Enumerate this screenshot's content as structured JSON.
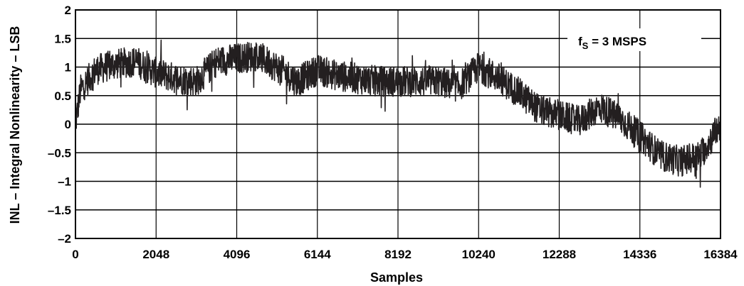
{
  "chart_data": {
    "type": "line",
    "title": "",
    "xlabel": "Samples",
    "ylabel": "INL – Integral Nonlinearity – LSB",
    "xlim": [
      0,
      16384
    ],
    "ylim": [
      -2,
      2
    ],
    "x_ticks": [
      0,
      2048,
      4096,
      6144,
      8192,
      10240,
      12288,
      14336,
      16384
    ],
    "x_tick_labels": [
      "0",
      "2048",
      "4096",
      "6144",
      "8192",
      "10240",
      "12288",
      "14336",
      "16384"
    ],
    "y_ticks": [
      2,
      1.5,
      1,
      0.5,
      0,
      -0.5,
      -1,
      -1.5,
      -2
    ],
    "y_tick_labels": [
      "2",
      "1.5",
      "1",
      "0.5",
      "0",
      "–0.5",
      "–1",
      "–1.5",
      "–2"
    ],
    "grid": "horizontal and vertical",
    "annotation": {
      "base": "f",
      "sub": "S",
      "rest": " = 3 MSPS",
      "position": "top-right"
    },
    "series": [
      {
        "color": "#231f20",
        "trend": {
          "x": [
            0,
            128,
            512,
            1024,
            1536,
            2048,
            2560,
            3072,
            3584,
            4096,
            4608,
            5120,
            5632,
            6144,
            6656,
            7168,
            7680,
            8192,
            8704,
            9216,
            9728,
            10240,
            10752,
            11264,
            11776,
            12288,
            12800,
            13312,
            13824,
            14336,
            14848,
            15360,
            15872,
            16384
          ],
          "y": [
            0.0,
            0.6,
            0.95,
            1.05,
            1.1,
            0.9,
            0.8,
            0.75,
            1.1,
            1.15,
            1.2,
            1.0,
            0.75,
            0.95,
            0.85,
            0.8,
            0.75,
            0.75,
            0.75,
            0.75,
            0.65,
            1.0,
            0.8,
            0.55,
            0.25,
            0.15,
            0.05,
            0.3,
            0.1,
            -0.2,
            -0.55,
            -0.65,
            -0.55,
            0.0
          ]
        },
        "amplitude": 0.27
      }
    ]
  }
}
